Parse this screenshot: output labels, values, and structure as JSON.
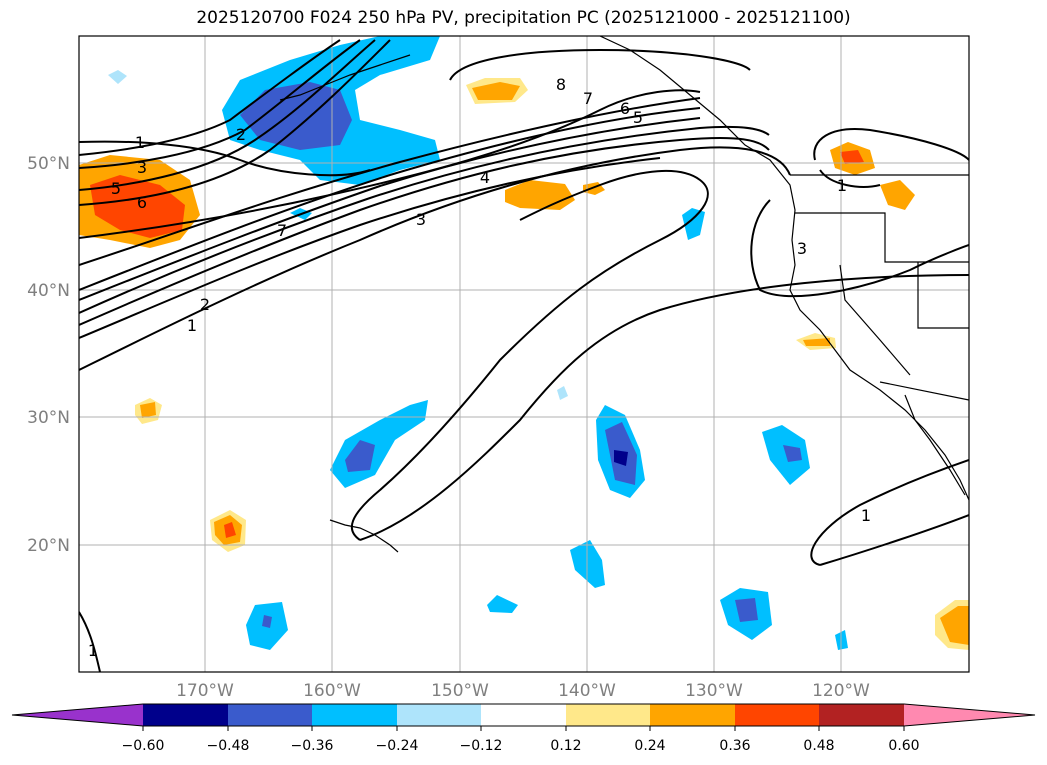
{
  "title": "2025120700 F024 250 hPa PV, precipitation PC (2025121000 - 2025121100)",
  "axes": {
    "lat_ticks": [
      "50°N",
      "40°N",
      "30°N",
      "20°N"
    ],
    "lon_ticks": [
      "170°W",
      "160°W",
      "150°W",
      "140°W",
      "130°W",
      "120°W"
    ]
  },
  "contour_labels": [
    "1",
    "3",
    "5",
    "6",
    "2",
    "8",
    "7",
    "6",
    "5",
    "4",
    "3",
    "7",
    "2",
    "1",
    "1",
    "3",
    "1",
    "1"
  ],
  "colorbar": {
    "ticks": [
      "−0.60",
      "−0.48",
      "−0.36",
      "−0.24",
      "−0.12",
      "0.12",
      "0.24",
      "0.36",
      "0.48",
      "0.60"
    ],
    "colors": [
      "#9932cc",
      "#00008b",
      "#3a5bcc",
      "#00bfff",
      "#aee4fb",
      "#ffffff",
      "#ffe88a",
      "#ffa500",
      "#ff4500",
      "#b22222",
      "#ff89b0"
    ]
  }
}
